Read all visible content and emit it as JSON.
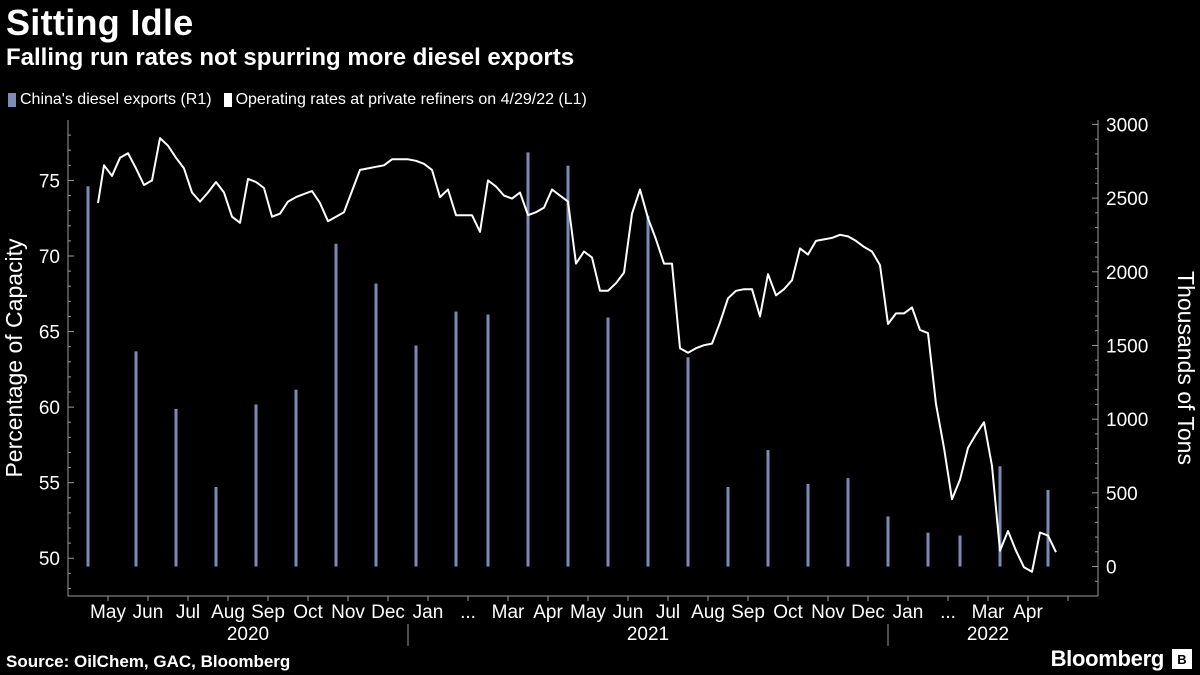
{
  "header": {
    "title": "Sitting Idle",
    "subtitle": "Falling run rates not spurring more diesel exports"
  },
  "legend": {
    "items": [
      {
        "label": "China's diesel exports (R1)",
        "color": "#7b8db4"
      },
      {
        "label": "Operating rates at private refiners on 4/29/22 (L1)",
        "color": "#ffffff"
      }
    ]
  },
  "footer": {
    "source": "Source: OilChem, GAC, Bloomberg",
    "brand": "Bloomberg",
    "brand_icon": "B"
  },
  "chart_data": {
    "type": "bar+line",
    "title": "Sitting Idle",
    "subtitle": "Falling run rates not spurring more diesel exports",
    "ylabel_left": "Percentage of Capacity",
    "ylabel_right": "Thousands of Tons",
    "left_axis": {
      "range": [
        47.5,
        79
      ],
      "ticks": [
        50,
        55,
        60,
        65,
        70,
        75
      ]
    },
    "right_axis": {
      "range": [
        -200,
        3030
      ],
      "ticks": [
        0,
        500,
        1000,
        1500,
        2000,
        2500,
        3000
      ]
    },
    "x_range": [
      0,
      25.75
    ],
    "month_ticks": [
      "May",
      "Jun",
      "Jul",
      "Aug",
      "Sep",
      "Oct",
      "Nov",
      "Dec",
      "Jan",
      "...",
      "Mar",
      "Apr",
      "May",
      "Jun",
      "Jul",
      "Aug",
      "Sep",
      "Oct",
      "Nov",
      "Dec",
      "Jan",
      "...",
      "Mar",
      "Apr"
    ],
    "years": [
      {
        "label": "2020",
        "center": 4
      },
      {
        "label": "2021",
        "center": 14
      },
      {
        "label": "2022",
        "center": 22.5
      }
    ],
    "year_separators": [
      8,
      20
    ],
    "series": [
      {
        "name": "China's diesel exports (R1)",
        "type": "bar",
        "color": "#7b8db4",
        "points": [
          {
            "month": "2020-04",
            "x": 0.0,
            "value": 2580
          },
          {
            "month": "2020-05",
            "x": 1.2,
            "value": 1460
          },
          {
            "month": "2020-06",
            "x": 2.2,
            "value": 1070
          },
          {
            "month": "2020-07",
            "x": 3.2,
            "value": 540
          },
          {
            "month": "2020-08",
            "x": 4.2,
            "value": 1100
          },
          {
            "month": "2020-09",
            "x": 5.2,
            "value": 1200
          },
          {
            "month": "2020-10",
            "x": 6.2,
            "value": 2190
          },
          {
            "month": "2020-11",
            "x": 7.2,
            "value": 1920
          },
          {
            "month": "2020-12",
            "x": 8.2,
            "value": 1500
          },
          {
            "month": "2021-01",
            "x": 9.2,
            "value": 1730
          },
          {
            "month": "2021-02",
            "x": 10.0,
            "value": 1710
          },
          {
            "month": "2021-03",
            "x": 11.0,
            "value": 2810
          },
          {
            "month": "2021-04",
            "x": 12.0,
            "value": 2720
          },
          {
            "month": "2021-05",
            "x": 13.0,
            "value": 1690
          },
          {
            "month": "2021-06",
            "x": 14.0,
            "value": 2380
          },
          {
            "month": "2021-07",
            "x": 15.0,
            "value": 1420
          },
          {
            "month": "2021-08",
            "x": 16.0,
            "value": 540
          },
          {
            "month": "2021-09",
            "x": 17.0,
            "value": 790
          },
          {
            "month": "2021-10",
            "x": 18.0,
            "value": 560
          },
          {
            "month": "2021-11",
            "x": 19.0,
            "value": 600
          },
          {
            "month": "2021-12",
            "x": 20.0,
            "value": 340
          },
          {
            "month": "2022-01",
            "x": 21.0,
            "value": 230
          },
          {
            "month": "2022-02",
            "x": 21.8,
            "value": 210
          },
          {
            "month": "2022-03",
            "x": 22.8,
            "value": 680
          },
          {
            "month": "2022-04",
            "x": 24.0,
            "value": 520
          }
        ]
      },
      {
        "name": "Operating rates at private refiners on 4/29/22 (L1)",
        "type": "line",
        "color": "#ffffff",
        "points": [
          [
            0.25,
            73.5
          ],
          [
            0.4,
            76.0
          ],
          [
            0.6,
            75.3
          ],
          [
            0.8,
            76.5
          ],
          [
            1.0,
            76.8
          ],
          [
            1.2,
            75.8
          ],
          [
            1.4,
            74.7
          ],
          [
            1.6,
            75.0
          ],
          [
            1.8,
            77.8
          ],
          [
            2.0,
            77.3
          ],
          [
            2.2,
            76.5
          ],
          [
            2.4,
            75.8
          ],
          [
            2.6,
            74.2
          ],
          [
            2.8,
            73.6
          ],
          [
            3.0,
            74.2
          ],
          [
            3.2,
            74.9
          ],
          [
            3.4,
            74.2
          ],
          [
            3.6,
            72.6
          ],
          [
            3.8,
            72.2
          ],
          [
            4.0,
            75.1
          ],
          [
            4.2,
            74.9
          ],
          [
            4.4,
            74.5
          ],
          [
            4.6,
            72.6
          ],
          [
            4.8,
            72.8
          ],
          [
            5.0,
            73.6
          ],
          [
            5.2,
            73.9
          ],
          [
            5.4,
            74.1
          ],
          [
            5.6,
            74.3
          ],
          [
            5.8,
            73.5
          ],
          [
            6.0,
            72.3
          ],
          [
            6.2,
            72.6
          ],
          [
            6.4,
            72.9
          ],
          [
            6.6,
            74.3
          ],
          [
            6.8,
            75.7
          ],
          [
            7.0,
            75.8
          ],
          [
            7.2,
            75.9
          ],
          [
            7.4,
            76.0
          ],
          [
            7.6,
            76.4
          ],
          [
            7.8,
            76.4
          ],
          [
            8.0,
            76.4
          ],
          [
            8.2,
            76.3
          ],
          [
            8.4,
            76.1
          ],
          [
            8.6,
            75.7
          ],
          [
            8.8,
            73.9
          ],
          [
            9.0,
            74.4
          ],
          [
            9.2,
            72.7
          ],
          [
            9.4,
            72.7
          ],
          [
            9.6,
            72.7
          ],
          [
            9.8,
            71.6
          ],
          [
            10.0,
            75.0
          ],
          [
            10.2,
            74.6
          ],
          [
            10.4,
            74.0
          ],
          [
            10.6,
            73.8
          ],
          [
            10.8,
            74.2
          ],
          [
            11.0,
            72.7
          ],
          [
            11.2,
            72.9
          ],
          [
            11.4,
            73.2
          ],
          [
            11.6,
            74.4
          ],
          [
            11.8,
            74.0
          ],
          [
            12.0,
            73.6
          ],
          [
            12.2,
            69.5
          ],
          [
            12.4,
            70.3
          ],
          [
            12.6,
            69.9
          ],
          [
            12.8,
            67.7
          ],
          [
            13.0,
            67.7
          ],
          [
            13.2,
            68.2
          ],
          [
            13.4,
            68.9
          ],
          [
            13.6,
            72.8
          ],
          [
            13.8,
            74.4
          ],
          [
            14.0,
            72.5
          ],
          [
            14.2,
            71.1
          ],
          [
            14.4,
            69.5
          ],
          [
            14.6,
            69.5
          ],
          [
            14.8,
            63.9
          ],
          [
            15.0,
            63.6
          ],
          [
            15.2,
            63.9
          ],
          [
            15.4,
            64.1
          ],
          [
            15.6,
            64.2
          ],
          [
            15.8,
            65.6
          ],
          [
            16.0,
            67.2
          ],
          [
            16.2,
            67.7
          ],
          [
            16.4,
            67.8
          ],
          [
            16.6,
            67.8
          ],
          [
            16.8,
            66.0
          ],
          [
            17.0,
            68.8
          ],
          [
            17.2,
            67.4
          ],
          [
            17.4,
            67.8
          ],
          [
            17.6,
            68.4
          ],
          [
            17.8,
            70.5
          ],
          [
            18.0,
            70.1
          ],
          [
            18.2,
            71.0
          ],
          [
            18.4,
            71.1
          ],
          [
            18.6,
            71.2
          ],
          [
            18.8,
            71.4
          ],
          [
            19.0,
            71.3
          ],
          [
            19.2,
            71.0
          ],
          [
            19.4,
            70.6
          ],
          [
            19.6,
            70.3
          ],
          [
            19.8,
            69.4
          ],
          [
            20.0,
            65.5
          ],
          [
            20.2,
            66.2
          ],
          [
            20.4,
            66.2
          ],
          [
            20.6,
            66.6
          ],
          [
            20.8,
            65.1
          ],
          [
            21.0,
            64.9
          ],
          [
            21.2,
            60.2
          ],
          [
            21.4,
            57.3
          ],
          [
            21.6,
            53.9
          ],
          [
            21.8,
            55.2
          ],
          [
            22.0,
            57.3
          ],
          [
            22.2,
            58.2
          ],
          [
            22.4,
            59.0
          ],
          [
            22.6,
            56.1
          ],
          [
            22.8,
            50.5
          ],
          [
            23.0,
            51.8
          ],
          [
            23.2,
            50.5
          ],
          [
            23.4,
            49.4
          ],
          [
            23.6,
            49.1
          ],
          [
            23.8,
            51.7
          ],
          [
            24.0,
            51.5
          ],
          [
            24.2,
            50.4
          ]
        ]
      }
    ]
  }
}
